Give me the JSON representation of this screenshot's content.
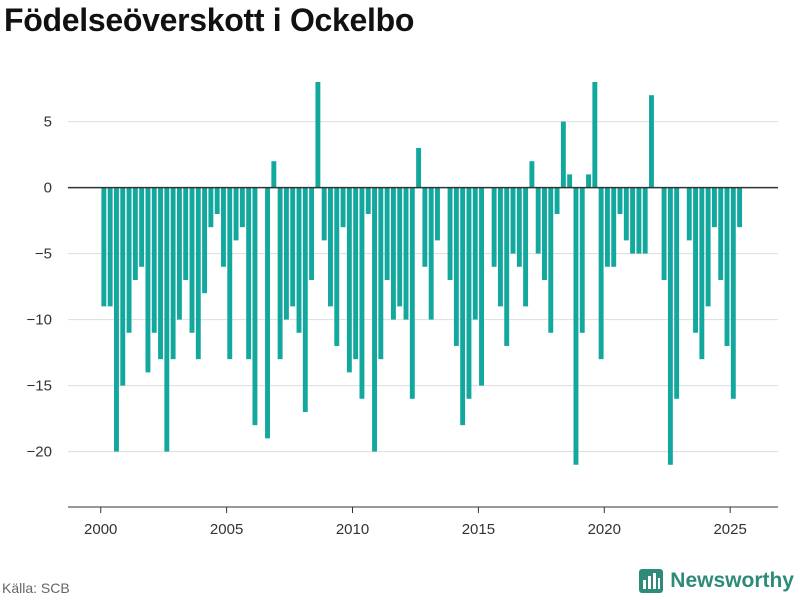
{
  "title": "Födelseöverskott i Ockelbo",
  "source": "Källa: SCB",
  "brand": {
    "name": "Newsworthy",
    "icon": "bar-chart-logo-icon"
  },
  "colors": {
    "bar": "#13a89e",
    "grid": "#dddddd",
    "axis": "#333333",
    "brand": "#2e8b7a"
  },
  "chart_data": {
    "type": "bar",
    "title": "Födelseöverskott i Ockelbo",
    "xlabel": "",
    "ylabel": "",
    "xlim": [
      1998.7,
      2026.9
    ],
    "ylim": [
      -24.2,
      8
    ],
    "yticks": [
      5,
      0,
      -5,
      -10,
      -15,
      -20
    ],
    "ytick_labels": [
      "5",
      "0",
      "−5",
      "−10",
      "−15",
      "−20"
    ],
    "xticks": [
      2000,
      2005,
      2010,
      2015,
      2020,
      2025
    ],
    "grid": true,
    "legend": "none",
    "period": "quarterly",
    "start": "2000-Q1",
    "values": [
      -9,
      -9,
      -20,
      -15,
      -11,
      -7,
      -6,
      -14,
      -11,
      -13,
      -20,
      -13,
      -10,
      -7,
      -11,
      -13,
      -8,
      -3,
      -2,
      -6,
      -13,
      -4,
      -3,
      -13,
      -18,
      0,
      -19,
      2,
      -13,
      -10,
      -9,
      -11,
      -17,
      -7,
      8,
      -4,
      -9,
      -12,
      -3,
      -14,
      -13,
      -16,
      -2,
      -20,
      -13,
      -7,
      -10,
      -9,
      -10,
      -16,
      3,
      -6,
      -10,
      -4,
      0,
      -7,
      -12,
      -18,
      -16,
      -10,
      -15,
      0,
      -6,
      -9,
      -12,
      -5,
      -6,
      -9,
      2,
      -5,
      -7,
      -11,
      -2,
      5,
      1,
      -21,
      -11,
      1,
      8,
      -13,
      -6,
      -6,
      -2,
      -4,
      -5,
      -5,
      -5,
      7,
      0,
      -7,
      -21,
      -16,
      0,
      -4,
      -11,
      -13,
      -9,
      -3,
      -7,
      -12,
      -16,
      -3
    ]
  }
}
